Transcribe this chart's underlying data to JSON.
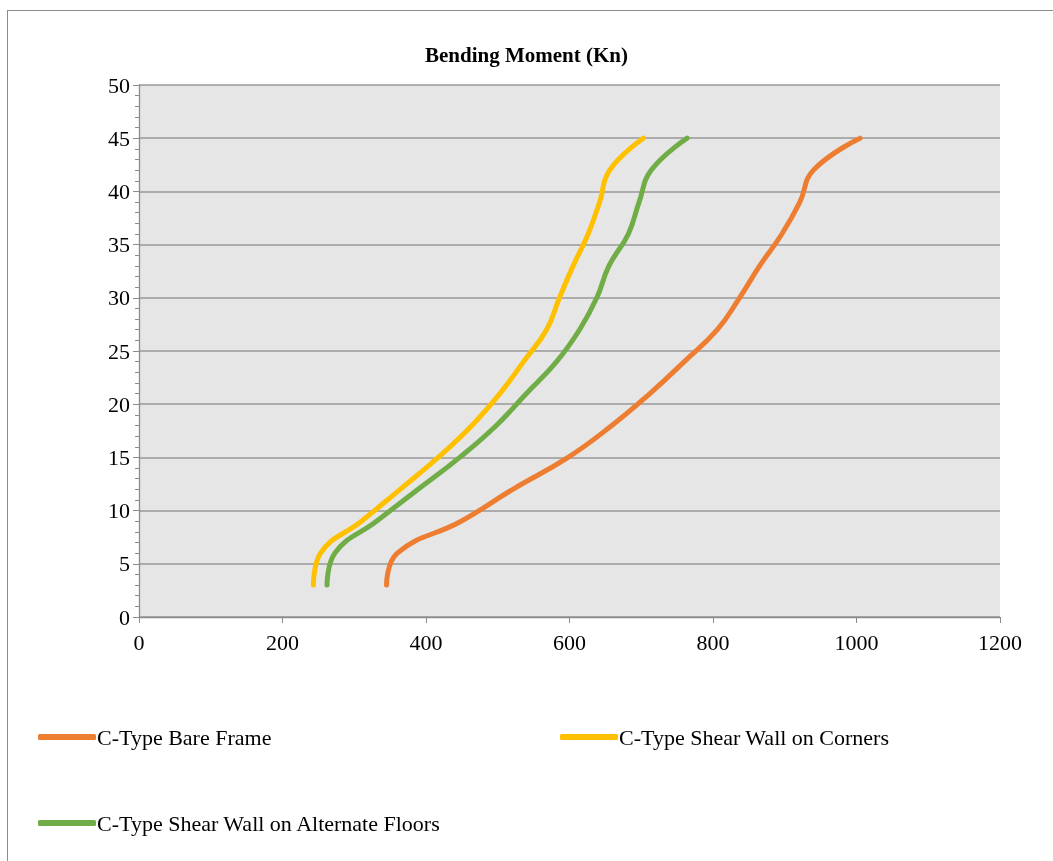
{
  "chart_data": {
    "type": "line",
    "title": "Bending Moment (Kn)",
    "series": [
      {
        "name": "C-Type Bare Frame",
        "color": "#ed7d31",
        "x": [
          345,
          360,
          449,
          521,
          598,
          659,
          712,
          760,
          806,
          837,
          865,
          896,
          921,
          940,
          1005
        ],
        "values": [
          3,
          6,
          9,
          12,
          15,
          18,
          21,
          24,
          27,
          30,
          33,
          36,
          39,
          42,
          45
        ]
      },
      {
        "name": "C-Type Shear Wall on Corners",
        "color": "#ffc000",
        "x": [
          243,
          253,
          310,
          364,
          417,
          464,
          503,
          536,
          568,
          586,
          605,
          626,
          642,
          656,
          703
        ],
        "values": [
          3,
          6,
          9,
          12,
          15,
          18,
          21,
          24,
          27,
          30,
          33,
          36,
          39,
          42,
          45
        ]
      },
      {
        "name": "C-Type Shear Wall on Alternate Floors",
        "color": "#70ad47",
        "x": [
          262,
          273,
          331,
          389,
          447,
          498,
          540,
          582,
          614,
          638,
          655,
          682,
          697,
          714,
          764
        ],
        "values": [
          3,
          6,
          9,
          12,
          15,
          18,
          21,
          24,
          27,
          30,
          33,
          36,
          39,
          42,
          45
        ]
      }
    ],
    "xlim": [
      0,
      1200
    ],
    "xticks": [
      0,
      200,
      400,
      600,
      800,
      1000,
      1200
    ],
    "ylim": [
      0,
      50
    ],
    "yticks": [
      0,
      5,
      10,
      15,
      20,
      25,
      30,
      35,
      40,
      45,
      50
    ],
    "grid": "y",
    "legend": "bottom",
    "marker": "none",
    "line_style": "solid"
  }
}
